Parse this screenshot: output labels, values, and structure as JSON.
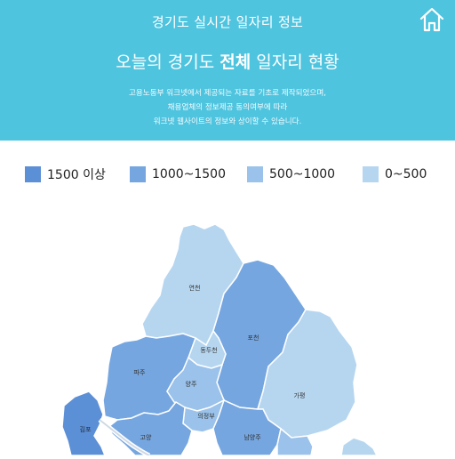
{
  "header": {
    "app_title": "경기도 실시간 일자리 정보",
    "home_icon": "home-icon",
    "headline_prefix": "오늘의 경기도 ",
    "headline_strong": "전체",
    "headline_suffix": " 일자리 현황",
    "description": [
      "고용노동부 워크넷에서 제공되는 자료를 기초로 제작되었으며,",
      "채용업체의 정보제공 동의여부에 따라",
      "워크넷 웹사이트의 정보와 상이할 수 있습니다."
    ],
    "background_color": "#4fc4df"
  },
  "legend": [
    {
      "label": "1500 이상",
      "color": "#5b8fd6"
    },
    {
      "label": "1000~1500",
      "color": "#75a6e0"
    },
    {
      "label": "500~1000",
      "color": "#9ac2ea"
    },
    {
      "label": "0~500",
      "color": "#b6d6f0"
    }
  ],
  "map": {
    "regions": [
      {
        "name": "연천",
        "color": "#b6d6f0"
      },
      {
        "name": "포천",
        "color": "#75a6e0"
      },
      {
        "name": "동두천",
        "color": "#b6d6f0"
      },
      {
        "name": "파주",
        "color": "#75a6e0"
      },
      {
        "name": "양주",
        "color": "#9ac2ea"
      },
      {
        "name": "가평",
        "color": "#b6d6f0"
      },
      {
        "name": "의정부",
        "color": "#9ac2ea"
      },
      {
        "name": "김포",
        "color": "#5b8fd6"
      },
      {
        "name": "고양",
        "color": "#75a6e0"
      },
      {
        "name": "남양주",
        "color": "#75a6e0"
      }
    ]
  }
}
